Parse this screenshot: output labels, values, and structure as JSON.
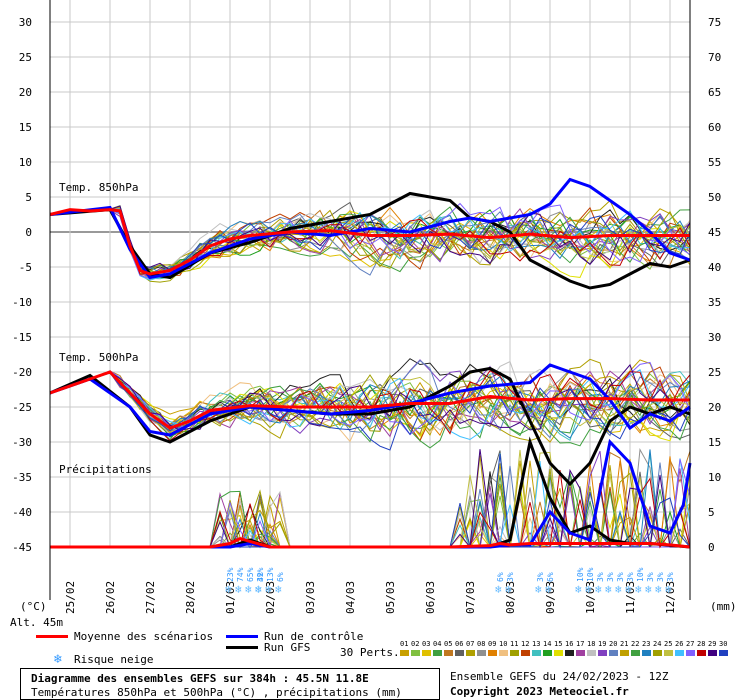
{
  "chart_data": {
    "type": "line",
    "title": "Diagramme des ensembles GEFS sur 384h : 45.5N 11.8E",
    "subtitle": "Températures 850hPa et 500hPa (°C) , précipitations (mm)",
    "left_axis": {
      "unit": "(°C)",
      "ticks": [
        30,
        25,
        20,
        15,
        10,
        5,
        0,
        -5,
        -10,
        -15,
        -20,
        -25,
        -30,
        -35,
        -40,
        -45
      ],
      "range": [
        -45,
        30
      ]
    },
    "right_axis": {
      "unit": "(mm)",
      "ticks": [
        75,
        70,
        65,
        60,
        55,
        50,
        45,
        40,
        35,
        30,
        25,
        20,
        15,
        10,
        5,
        0
      ],
      "range": [
        0,
        75
      ]
    },
    "altitude_label": "Alt. 45m",
    "x_ticks": [
      "25/02",
      "26/02",
      "27/02",
      "28/02",
      "01/03",
      "02/03",
      "03/03",
      "04/03",
      "05/03",
      "06/03",
      "07/03",
      "08/03",
      "09/03",
      "10/03",
      "11/03",
      "12/03"
    ],
    "section_labels": [
      "Temp. 850hPa",
      "Temp. 500hPa",
      "Précipitations"
    ],
    "snow_risk": [
      {
        "time_h": 108,
        "pct": "23%"
      },
      {
        "time_h": 114,
        "pct": "74%"
      },
      {
        "time_h": 120,
        "pct": "65%"
      },
      {
        "time_h": 126,
        "pct": "42%"
      },
      {
        "time_h": 132,
        "pct": "13%"
      },
      {
        "time_h": 138,
        "pct": "6%"
      },
      {
        "time_h": 126,
        "pct": "3%"
      },
      {
        "time_h": 270,
        "pct": "6%"
      },
      {
        "time_h": 276,
        "pct": "3%"
      },
      {
        "time_h": 294,
        "pct": "3%"
      },
      {
        "time_h": 300,
        "pct": "6%"
      },
      {
        "time_h": 318,
        "pct": "10%"
      },
      {
        "time_h": 324,
        "pct": "10%"
      },
      {
        "time_h": 330,
        "pct": "3%"
      },
      {
        "time_h": 336,
        "pct": "3%"
      },
      {
        "time_h": 342,
        "pct": "3%"
      },
      {
        "time_h": 348,
        "pct": "3%"
      },
      {
        "time_h": 354,
        "pct": "10%"
      },
      {
        "time_h": 360,
        "pct": "3%"
      },
      {
        "time_h": 366,
        "pct": "3%"
      },
      {
        "time_h": 372,
        "pct": "3%"
      }
    ],
    "series": [
      {
        "name": "Moyenne des scénarios",
        "color": "#ff0000",
        "t850": [
          [
            0,
            2.5
          ],
          [
            12,
            3.2
          ],
          [
            24,
            3.0
          ],
          [
            36,
            3.2
          ],
          [
            42,
            3.0
          ],
          [
            48,
            -2
          ],
          [
            54,
            -5.5
          ],
          [
            60,
            -6
          ],
          [
            72,
            -5.5
          ],
          [
            84,
            -4
          ],
          [
            96,
            -2
          ],
          [
            108,
            -1
          ],
          [
            120,
            -0.5
          ],
          [
            144,
            0
          ],
          [
            168,
            0.2
          ],
          [
            192,
            -0.5
          ],
          [
            216,
            -0.5
          ],
          [
            240,
            -0.3
          ],
          [
            264,
            -0.8
          ],
          [
            288,
            -0.3
          ],
          [
            312,
            -0.8
          ],
          [
            336,
            -0.5
          ],
          [
            360,
            -0.5
          ],
          [
            384,
            -0.5
          ]
        ],
        "t500": [
          [
            0,
            -23
          ],
          [
            24,
            -21
          ],
          [
            36,
            -20
          ],
          [
            48,
            -23
          ],
          [
            60,
            -26
          ],
          [
            72,
            -28
          ],
          [
            84,
            -27
          ],
          [
            96,
            -25.5
          ],
          [
            120,
            -24.8
          ],
          [
            144,
            -25
          ],
          [
            168,
            -25
          ],
          [
            192,
            -25
          ],
          [
            216,
            -24.5
          ],
          [
            240,
            -24.5
          ],
          [
            264,
            -23.5
          ],
          [
            288,
            -24
          ],
          [
            312,
            -23.8
          ],
          [
            336,
            -23.8
          ],
          [
            360,
            -24
          ],
          [
            384,
            -24
          ]
        ],
        "precip": [
          [
            0,
            0
          ],
          [
            96,
            0
          ],
          [
            108,
            0.5
          ],
          [
            114,
            1.2
          ],
          [
            120,
            0.8
          ],
          [
            132,
            0
          ],
          [
            192,
            0
          ],
          [
            216,
            0
          ],
          [
            240,
            0
          ],
          [
            264,
            0.2
          ],
          [
            270,
            0.5
          ],
          [
            276,
            0.3
          ],
          [
            288,
            0.5
          ],
          [
            300,
            0.5
          ],
          [
            312,
            0.5
          ],
          [
            330,
            0.5
          ],
          [
            348,
            0.5
          ],
          [
            360,
            0.5
          ],
          [
            372,
            0.3
          ],
          [
            384,
            0
          ]
        ]
      },
      {
        "name": "Run de contrôle",
        "color": "#0000ff",
        "t850": [
          [
            0,
            2.5
          ],
          [
            36,
            3.5
          ],
          [
            48,
            -2.5
          ],
          [
            60,
            -6.5
          ],
          [
            72,
            -6
          ],
          [
            96,
            -3
          ],
          [
            120,
            -1
          ],
          [
            144,
            0
          ],
          [
            168,
            -0.5
          ],
          [
            192,
            0.5
          ],
          [
            216,
            0
          ],
          [
            240,
            1.5
          ],
          [
            252,
            2
          ],
          [
            264,
            1.5
          ],
          [
            288,
            2.5
          ],
          [
            300,
            4
          ],
          [
            312,
            7.5
          ],
          [
            324,
            6.5
          ],
          [
            336,
            4.5
          ],
          [
            348,
            2.5
          ],
          [
            360,
            0
          ],
          [
            372,
            -3
          ],
          [
            384,
            -4
          ]
        ],
        "t500": [
          [
            0,
            -23
          ],
          [
            24,
            -21
          ],
          [
            48,
            -25
          ],
          [
            60,
            -28.5
          ],
          [
            72,
            -29
          ],
          [
            96,
            -26
          ],
          [
            120,
            -25
          ],
          [
            168,
            -26
          ],
          [
            192,
            -25.5
          ],
          [
            216,
            -24.5
          ],
          [
            240,
            -23
          ],
          [
            264,
            -22
          ],
          [
            288,
            -21.5
          ],
          [
            300,
            -19
          ],
          [
            312,
            -20
          ],
          [
            324,
            -21
          ],
          [
            336,
            -24
          ],
          [
            348,
            -28
          ],
          [
            360,
            -26
          ],
          [
            372,
            -27
          ],
          [
            384,
            -25
          ]
        ],
        "precip": [
          [
            0,
            0
          ],
          [
            108,
            0
          ],
          [
            120,
            0.5
          ],
          [
            132,
            0
          ],
          [
            264,
            0
          ],
          [
            276,
            0.3
          ],
          [
            288,
            0.3
          ],
          [
            300,
            5
          ],
          [
            312,
            2
          ],
          [
            324,
            1
          ],
          [
            336,
            15
          ],
          [
            348,
            12
          ],
          [
            360,
            3
          ],
          [
            372,
            2
          ],
          [
            380,
            6
          ],
          [
            384,
            12
          ]
        ]
      },
      {
        "name": "Run GFS",
        "color": "#000000",
        "t850": [
          [
            0,
            2.5
          ],
          [
            36,
            3.2
          ],
          [
            48,
            -2
          ],
          [
            60,
            -6
          ],
          [
            72,
            -6.5
          ],
          [
            96,
            -3
          ],
          [
            120,
            -1.5
          ],
          [
            144,
            0.5
          ],
          [
            168,
            1.5
          ],
          [
            192,
            2.5
          ],
          [
            204,
            4
          ],
          [
            216,
            5.5
          ],
          [
            228,
            5
          ],
          [
            240,
            4.5
          ],
          [
            252,
            2
          ],
          [
            264,
            1.5
          ],
          [
            276,
            0
          ],
          [
            288,
            -4
          ],
          [
            300,
            -5.5
          ],
          [
            312,
            -7
          ],
          [
            324,
            -8
          ],
          [
            336,
            -7.5
          ],
          [
            348,
            -6
          ],
          [
            360,
            -4.5
          ],
          [
            372,
            -5
          ],
          [
            384,
            -4
          ]
        ],
        "t500": [
          [
            0,
            -23
          ],
          [
            24,
            -20.5
          ],
          [
            48,
            -25
          ],
          [
            60,
            -29
          ],
          [
            72,
            -30
          ],
          [
            96,
            -27
          ],
          [
            120,
            -25
          ],
          [
            168,
            -26
          ],
          [
            192,
            -26
          ],
          [
            216,
            -25
          ],
          [
            240,
            -22
          ],
          [
            252,
            -20
          ],
          [
            264,
            -19.5
          ],
          [
            276,
            -21
          ],
          [
            288,
            -27
          ],
          [
            300,
            -33
          ],
          [
            312,
            -36
          ],
          [
            324,
            -33
          ],
          [
            336,
            -27
          ],
          [
            348,
            -25
          ],
          [
            360,
            -26
          ],
          [
            372,
            -25
          ],
          [
            384,
            -26
          ]
        ],
        "precip": [
          [
            0,
            0
          ],
          [
            108,
            0
          ],
          [
            120,
            1
          ],
          [
            132,
            0
          ],
          [
            264,
            0
          ],
          [
            276,
            1
          ],
          [
            288,
            15
          ],
          [
            300,
            7
          ],
          [
            312,
            2
          ],
          [
            324,
            3
          ],
          [
            336,
            1
          ],
          [
            348,
            0.5
          ],
          [
            360,
            0.5
          ],
          [
            384,
            0
          ]
        ]
      }
    ]
  },
  "legend": {
    "mean": "Moyenne des scénarios",
    "control": "Run de contrôle",
    "gfs": "Run GFS",
    "snow": "Risque neige",
    "perts_label": "30 Perts.",
    "pert_numbers": [
      "01",
      "02",
      "03",
      "04",
      "05",
      "06",
      "07",
      "08",
      "09",
      "10",
      "11",
      "12",
      "13",
      "14",
      "15",
      "16",
      "17",
      "18",
      "19",
      "20",
      "21",
      "22",
      "23",
      "24",
      "25",
      "26",
      "27",
      "28",
      "29",
      "30"
    ],
    "pert_colors": [
      "#c8a000",
      "#80c040",
      "#e0c000",
      "#40a040",
      "#c07820",
      "#606060",
      "#b0a000",
      "#909090",
      "#e08000",
      "#f0c080",
      "#a0a000",
      "#c04000",
      "#40c0c0",
      "#20a020",
      "#e0e000",
      "#202020",
      "#a040a0",
      "#c0c0c0",
      "#8040c0",
      "#6080c0",
      "#c0a000",
      "#40a040",
      "#2080c0",
      "#a0a000",
      "#c0c040",
      "#40c0ff",
      "#8060ff",
      "#c00000",
      "#400080",
      "#2040c0"
    ]
  },
  "footer": {
    "title": "Diagramme des ensembles GEFS sur 384h : 45.5N 11.8E",
    "subtitle": "Températures 850hPa et 500hPa (°C) , précipitations (mm)",
    "run_info": "Ensemble GEFS du 24/02/2023 - 12Z",
    "copyright": "Copyright 2023 Meteociel.fr"
  }
}
